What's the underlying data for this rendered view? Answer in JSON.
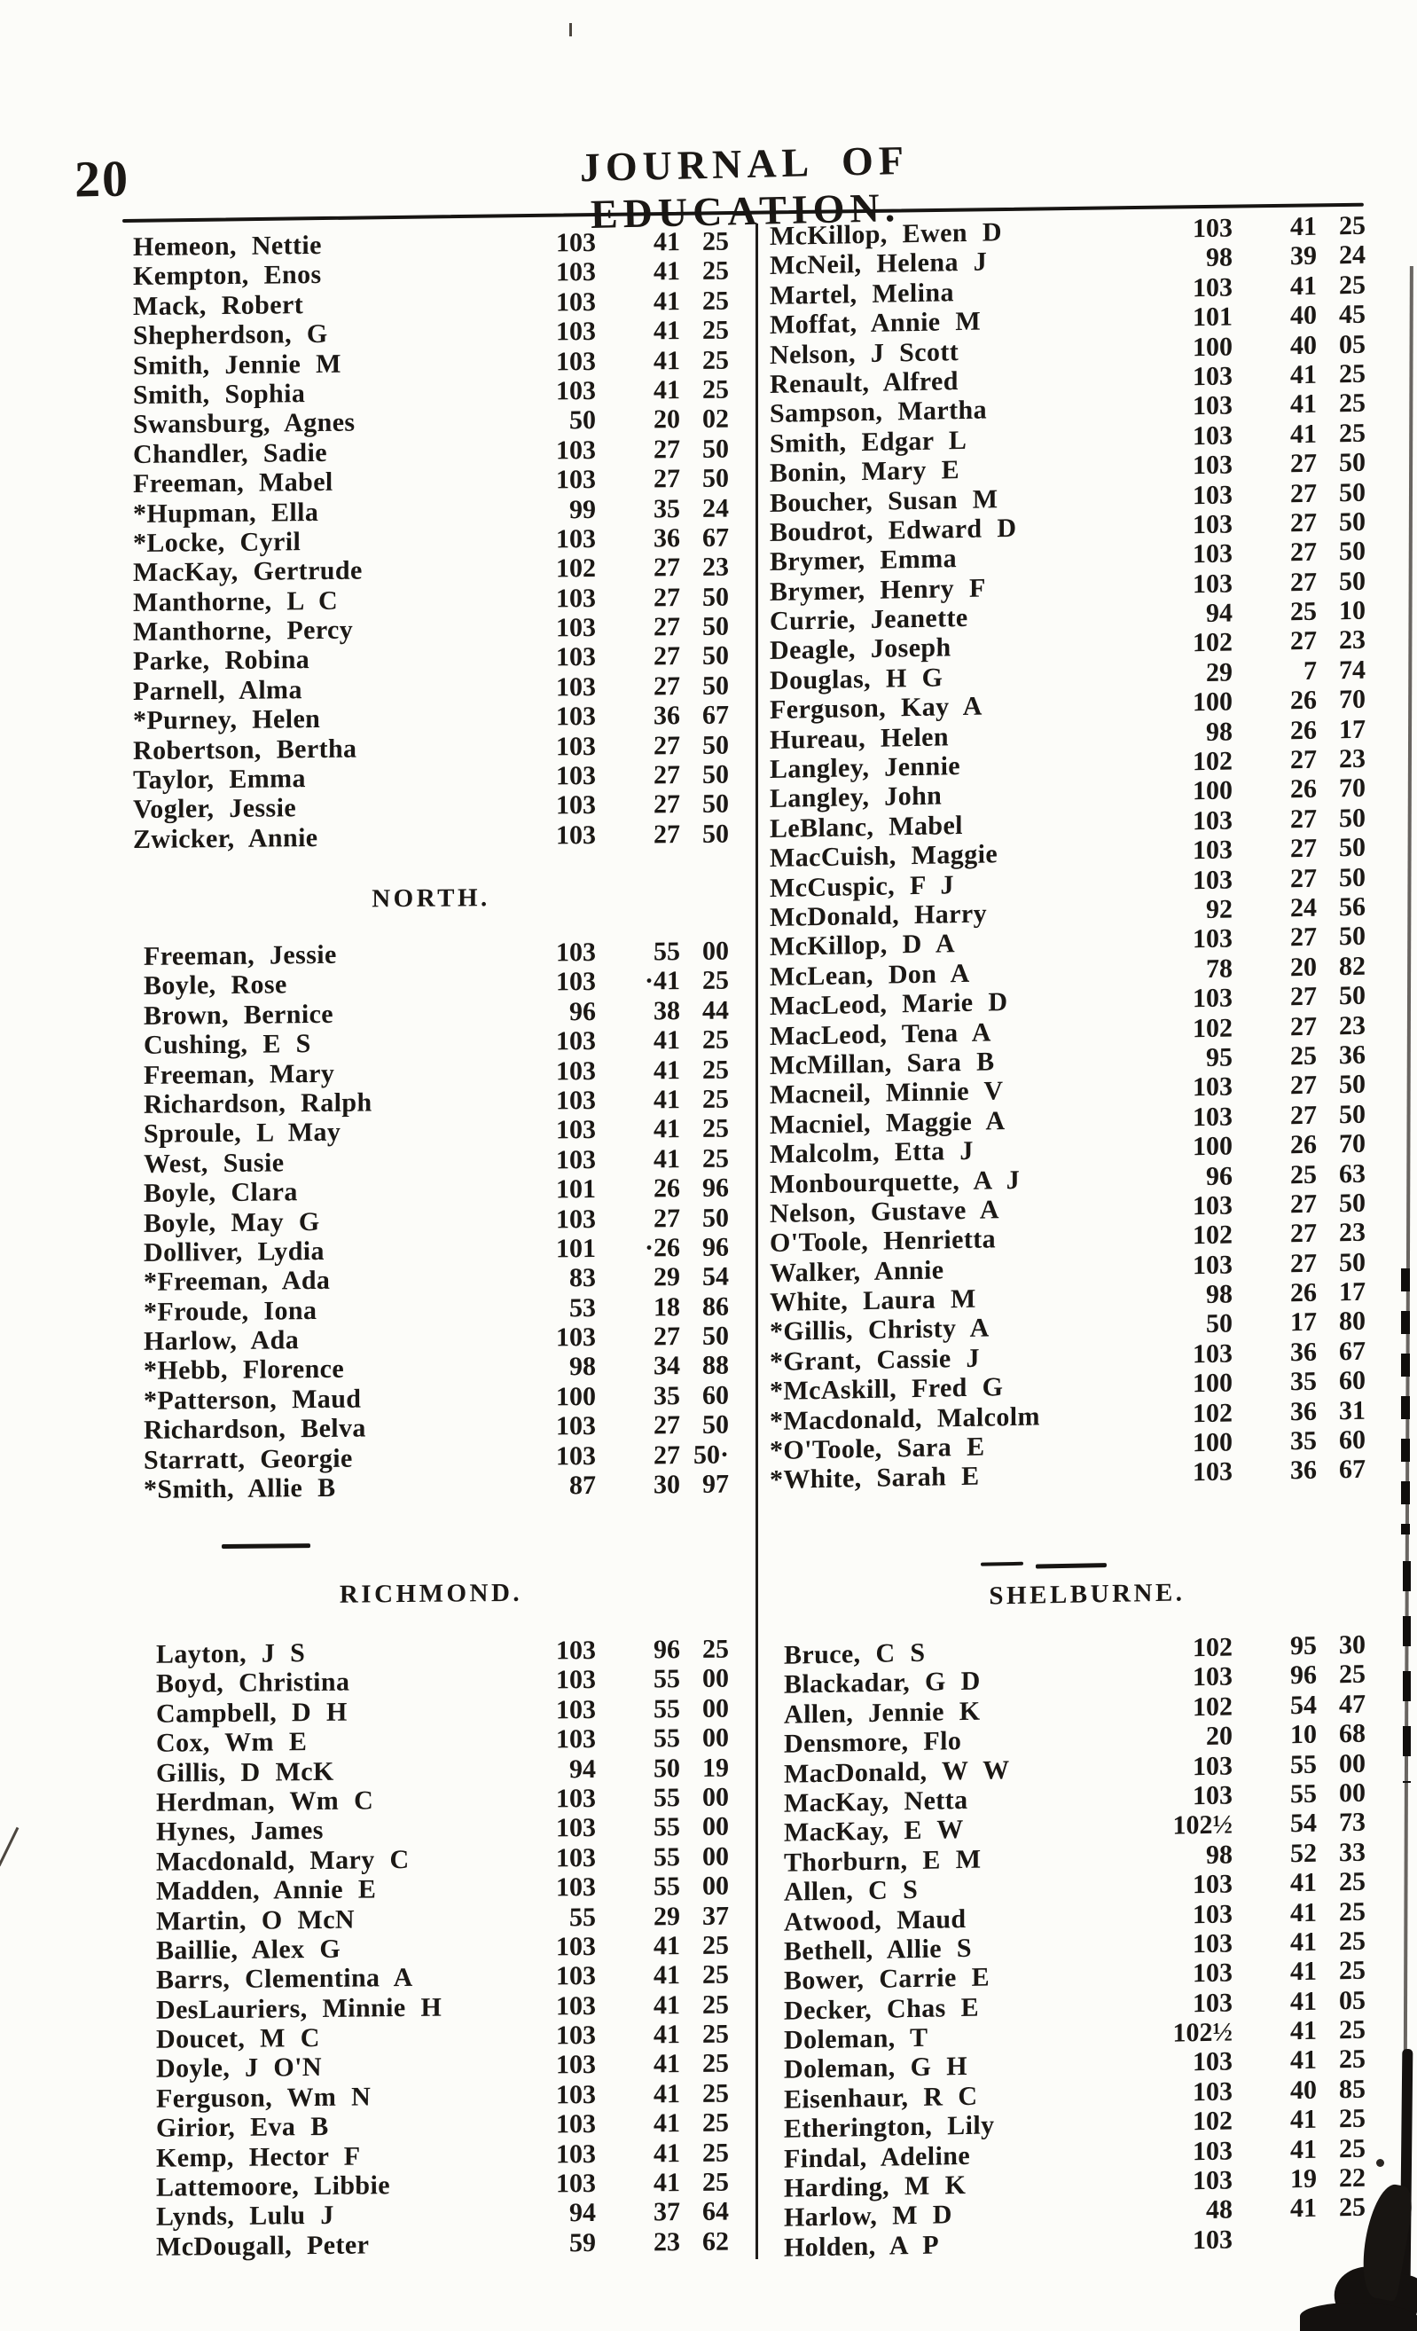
{
  "page": {
    "number": "20",
    "title": "JOURNAL OF EDUCATION."
  },
  "left": {
    "sections": [
      {
        "heading": "",
        "rows": [
          {
            "name": "Hemeon, Nettie",
            "days": "103",
            "amount": "41 25"
          },
          {
            "name": "Kempton, Enos",
            "days": "103",
            "amount": "41 25"
          },
          {
            "name": "Mack, Robert",
            "days": "103",
            "amount": "41 25"
          },
          {
            "name": "Shepherdson, G",
            "days": "103",
            "amount": "41 25"
          },
          {
            "name": "Smith, Jennie M",
            "days": "103",
            "amount": "41 25"
          },
          {
            "name": "Smith, Sophia",
            "days": "103",
            "amount": "41 25"
          },
          {
            "name": "Swansburg, Agnes",
            "days": "50",
            "amount": "20 02"
          },
          {
            "name": "Chandler, Sadie",
            "days": "103",
            "amount": "27 50"
          },
          {
            "name": "Freeman, Mabel",
            "days": "103",
            "amount": "27 50"
          },
          {
            "name": "*Hupman, Ella",
            "days": "99",
            "amount": "35 24"
          },
          {
            "name": "*Locke, Cyril",
            "days": "103",
            "amount": "36 67"
          },
          {
            "name": "MacKay, Gertrude",
            "days": "102",
            "amount": "27 23"
          },
          {
            "name": "Manthorne, L C",
            "days": "103",
            "amount": "27 50"
          },
          {
            "name": "Manthorne, Percy",
            "days": "103",
            "amount": "27 50"
          },
          {
            "name": "Parke, Robina",
            "days": "103",
            "amount": "27 50"
          },
          {
            "name": "Parnell, Alma",
            "days": "103",
            "amount": "27 50"
          },
          {
            "name": "*Purney, Helen",
            "days": "103",
            "amount": "36 67"
          },
          {
            "name": "Robertson, Bertha",
            "days": "103",
            "amount": "27 50"
          },
          {
            "name": "Taylor, Emma",
            "days": "103",
            "amount": "27 50"
          },
          {
            "name": "Vogler, Jessie",
            "days": "103",
            "amount": "27 50"
          },
          {
            "name": "Zwicker, Annie",
            "days": "103",
            "amount": "27 50"
          }
        ]
      },
      {
        "heading": "NORTH.",
        "rows": [
          {
            "name": "Freeman, Jessie",
            "days": "103",
            "amount": "55 00"
          },
          {
            "name": "Boyle, Rose",
            "days": "103",
            "amount": "·41 25"
          },
          {
            "name": "Brown, Bernice",
            "days": "96",
            "amount": "38 44"
          },
          {
            "name": "Cushing, E S",
            "days": "103",
            "amount": "41 25"
          },
          {
            "name": "Freeman, Mary",
            "days": "103",
            "amount": "41 25"
          },
          {
            "name": "Richardson, Ralph",
            "days": "103",
            "amount": "41 25"
          },
          {
            "name": "Sproule, L May",
            "days": "103",
            "amount": "41 25"
          },
          {
            "name": "West, Susie",
            "days": "103",
            "amount": "41 25"
          },
          {
            "name": "Boyle, Clara",
            "days": "101",
            "amount": "26 96"
          },
          {
            "name": "Boyle, May G",
            "days": "103",
            "amount": "27 50"
          },
          {
            "name": "Dolliver, Lydia",
            "days": "101",
            "amount": "·26 96"
          },
          {
            "name": "*Freeman, Ada",
            "days": "83",
            "amount": "29 54"
          },
          {
            "name": "*Froude, Iona",
            "days": "53",
            "amount": "18 86"
          },
          {
            "name": "Harlow, Ada",
            "days": "103",
            "amount": "27 50"
          },
          {
            "name": "*Hebb, Florence",
            "days": "98",
            "amount": "34 88"
          },
          {
            "name": "*Patterson, Maud",
            "days": "100",
            "amount": "35 60"
          },
          {
            "name": "Richardson, Belva",
            "days": "103",
            "amount": "27 50"
          },
          {
            "name": "Starratt, Georgie",
            "days": "103",
            "amount": "27 50·"
          },
          {
            "name": "*Smith, Allie B",
            "days": "87",
            "amount": "30 97"
          }
        ]
      },
      {
        "heading": "RICHMOND.",
        "rows": [
          {
            "name": "Layton, J S",
            "days": "103",
            "amount": "96 25"
          },
          {
            "name": "Boyd, Christina",
            "days": "103",
            "amount": "55 00"
          },
          {
            "name": "Campbell, D H",
            "days": "103",
            "amount": "55 00"
          },
          {
            "name": "Cox, Wm E",
            "days": "103",
            "amount": "55 00"
          },
          {
            "name": "Gillis, D McK",
            "days": "94",
            "amount": "50 19"
          },
          {
            "name": "Herdman, Wm C",
            "days": "103",
            "amount": "55 00"
          },
          {
            "name": "Hynes, James",
            "days": "103",
            "amount": "55 00"
          },
          {
            "name": "Macdonald, Mary C",
            "days": "103",
            "amount": "55 00"
          },
          {
            "name": "Madden, Annie E",
            "days": "103",
            "amount": "55 00"
          },
          {
            "name": "Martin, O McN",
            "days": "55",
            "amount": "29 37"
          },
          {
            "name": "Baillie, Alex G",
            "days": "103",
            "amount": "41 25"
          },
          {
            "name": "Barrs, Clementina A",
            "days": "103",
            "amount": "41 25"
          },
          {
            "name": "DesLauriers, Minnie H",
            "days": "103",
            "amount": "41 25"
          },
          {
            "name": "Doucet, M C",
            "days": "103",
            "amount": "41 25"
          },
          {
            "name": "Doyle, J O'N",
            "days": "103",
            "amount": "41 25"
          },
          {
            "name": "Ferguson, Wm N",
            "days": "103",
            "amount": "41 25"
          },
          {
            "name": "Girior, Eva B",
            "days": "103",
            "amount": "41 25"
          },
          {
            "name": "Kemp, Hector F",
            "days": "103",
            "amount": "41 25"
          },
          {
            "name": "Lattemoore, Libbie",
            "days": "103",
            "amount": "41 25"
          },
          {
            "name": "Lynds, Lulu J",
            "days": "94",
            "amount": "37 64"
          },
          {
            "name": "McDougall, Peter",
            "days": "59",
            "amount": "23 62"
          }
        ]
      }
    ]
  },
  "right": {
    "sections": [
      {
        "heading": "",
        "rows": [
          {
            "name": "McKillop, Ewen D",
            "days": "103",
            "amount": "41 25"
          },
          {
            "name": "McNeil, Helena J",
            "days": "98",
            "amount": "39 24"
          },
          {
            "name": "Martel, Melina",
            "days": "103",
            "amount": "41 25"
          },
          {
            "name": "Moffat, Annie M",
            "days": "101",
            "amount": "40 45"
          },
          {
            "name": "Nelson, J Scott",
            "days": "100",
            "amount": "40 05"
          },
          {
            "name": "Renault, Alfred",
            "days": "103",
            "amount": "41 25"
          },
          {
            "name": "Sampson, Martha",
            "days": "103",
            "amount": "41 25"
          },
          {
            "name": "Smith, Edgar L",
            "days": "103",
            "amount": "41 25"
          },
          {
            "name": "Bonin, Mary E",
            "days": "103",
            "amount": "27 50"
          },
          {
            "name": "Boucher, Susan M",
            "days": "103",
            "amount": "27 50"
          },
          {
            "name": "Boudrot, Edward D",
            "days": "103",
            "amount": "27 50"
          },
          {
            "name": "Brymer, Emma",
            "days": "103",
            "amount": "27 50"
          },
          {
            "name": "Brymer, Henry F",
            "days": "103",
            "amount": "27 50"
          },
          {
            "name": "Currie, Jeanette",
            "days": "94",
            "amount": "25 10"
          },
          {
            "name": "Deagle, Joseph",
            "days": "102",
            "amount": "27 23"
          },
          {
            "name": "Douglas, H G",
            "days": "29",
            "amount": "7 74"
          },
          {
            "name": "Ferguson, Kay A",
            "days": "100",
            "amount": "26 70"
          },
          {
            "name": "Hureau, Helen",
            "days": "98",
            "amount": "26 17"
          },
          {
            "name": "Langley, Jennie",
            "days": "102",
            "amount": "27 23"
          },
          {
            "name": "Langley, John",
            "days": "100",
            "amount": "26 70"
          },
          {
            "name": "LeBlanc, Mabel",
            "days": "103",
            "amount": "27 50"
          },
          {
            "name": "MacCuish, Maggie",
            "days": "103",
            "amount": "27 50"
          },
          {
            "name": "McCuspic, F J",
            "days": "103",
            "amount": "27 50"
          },
          {
            "name": "McDonald, Harry",
            "days": "92",
            "amount": "24 56"
          },
          {
            "name": "McKillop, D A",
            "days": "103",
            "amount": "27 50"
          },
          {
            "name": "McLean, Don A",
            "days": "78",
            "amount": "20 82"
          },
          {
            "name": "MacLeod, Marie D",
            "days": "103",
            "amount": "27 50"
          },
          {
            "name": "MacLeod, Tena A",
            "days": "102",
            "amount": "27 23"
          },
          {
            "name": "McMillan, Sara B",
            "days": "95",
            "amount": "25 36"
          },
          {
            "name": "Macneil, Minnie V",
            "days": "103",
            "amount": "27 50"
          },
          {
            "name": "Macniel, Maggie A",
            "days": "103",
            "amount": "27 50"
          },
          {
            "name": "Malcolm, Etta J",
            "days": "100",
            "amount": "26 70"
          },
          {
            "name": "Monbourquette, A J",
            "days": "96",
            "amount": "25 63"
          },
          {
            "name": "Nelson, Gustave A",
            "days": "103",
            "amount": "27 50"
          },
          {
            "name": "O'Toole, Henrietta",
            "days": "102",
            "amount": "27 23"
          },
          {
            "name": "Walker, Annie",
            "days": "103",
            "amount": "27 50"
          },
          {
            "name": "White, Laura M",
            "days": "98",
            "amount": "26 17"
          },
          {
            "name": "*Gillis, Christy A",
            "days": "50",
            "amount": "17 80"
          },
          {
            "name": "*Grant, Cassie J",
            "days": "103",
            "amount": "36 67"
          },
          {
            "name": "*McAskill, Fred G",
            "days": "100",
            "amount": "35 60"
          },
          {
            "name": "*Macdonald, Malcolm",
            "days": "102",
            "amount": "36 31"
          },
          {
            "name": "*O'Toole, Sara E",
            "days": "100",
            "amount": "35 60"
          },
          {
            "name": "*White, Sarah E",
            "days": "103",
            "amount": "36 67"
          }
        ]
      },
      {
        "heading": "SHELBURNE.",
        "rows": [
          {
            "name": "Bruce, C S",
            "days": "102",
            "amount": "95 30"
          },
          {
            "name": "Blackadar, G D",
            "days": "103",
            "amount": "96 25"
          },
          {
            "name": "Allen, Jennie K",
            "days": "102",
            "amount": "54 47"
          },
          {
            "name": "Densmore, Flo",
            "days": "20",
            "amount": "10 68"
          },
          {
            "name": "MacDonald, W W",
            "days": "103",
            "amount": "55 00"
          },
          {
            "name": "MacKay, Netta",
            "days": "103",
            "amount": "55 00"
          },
          {
            "name": "MacKay, E W",
            "days": "102½",
            "amount": "54 73"
          },
          {
            "name": "Thorburn, E M",
            "days": "98",
            "amount": "52 33"
          },
          {
            "name": "Allen, C S",
            "days": "103",
            "amount": "41 25"
          },
          {
            "name": "Atwood, Maud",
            "days": "103",
            "amount": "41 25"
          },
          {
            "name": "Bethell, Allie S",
            "days": "103",
            "amount": "41 25"
          },
          {
            "name": "Bower, Carrie E",
            "days": "103",
            "amount": "41 25"
          },
          {
            "name": "Decker, Chas E",
            "days": "103",
            "amount": "41 05"
          },
          {
            "name": "Doleman, T",
            "days": "102½",
            "amount": "41 25"
          },
          {
            "name": "Doleman, G H",
            "days": "103",
            "amount": "41 25"
          },
          {
            "name": "Eisenhaur, R C",
            "days": "103",
            "amount": "40 85"
          },
          {
            "name": "Etherington, Lily",
            "days": "102",
            "amount": "41 25"
          },
          {
            "name": "Findal, Adeline",
            "days": "103",
            "amount": "41 25"
          },
          {
            "name": "Harding, M K",
            "days": "103",
            "amount": "19 22"
          },
          {
            "name": "Harlow, M D",
            "days": "48",
            "amount": "41 25"
          },
          {
            "name": "Holden, A P",
            "days": "103",
            "amount": ""
          }
        ]
      }
    ]
  }
}
